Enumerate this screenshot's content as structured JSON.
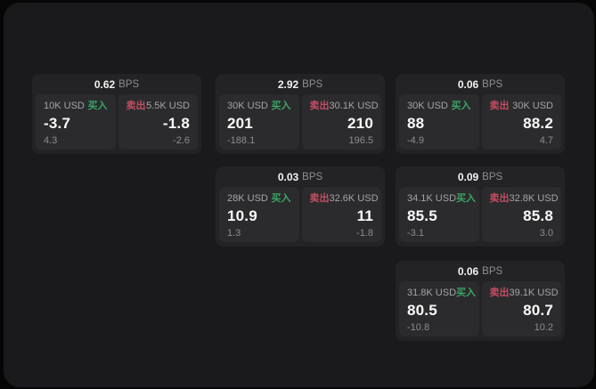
{
  "labels": {
    "bps_suffix": "BPS",
    "buy": "买入",
    "sell": "卖出"
  },
  "colors": {
    "buy_green": "#3aa564",
    "sell_red": "#c44d63"
  },
  "cards": [
    {
      "bps": "0.62",
      "col": 0,
      "row": 0,
      "buy": {
        "size": "10K USD",
        "value": "-3.7",
        "change": "4.3"
      },
      "sell": {
        "size": "5.5K USD",
        "value": "-1.8",
        "change": "-2.6"
      }
    },
    {
      "bps": "2.92",
      "col": 1,
      "row": 0,
      "buy": {
        "size": "30K USD",
        "value": "201",
        "change": "-188.1"
      },
      "sell": {
        "size": "30.1K USD",
        "value": "210",
        "change": "196.5"
      }
    },
    {
      "bps": "0.06",
      "col": 2,
      "row": 0,
      "buy": {
        "size": "30K USD",
        "value": "88",
        "change": "-4.9"
      },
      "sell": {
        "size": "30K USD",
        "value": "88.2",
        "change": "4.7"
      }
    },
    {
      "bps": "0.03",
      "col": 1,
      "row": 1,
      "buy": {
        "size": "28K USD",
        "value": "10.9",
        "change": "1.3"
      },
      "sell": {
        "size": "32.6K USD",
        "value": "11",
        "change": "-1.8"
      }
    },
    {
      "bps": "0.09",
      "col": 2,
      "row": 1,
      "buy": {
        "size": "34.1K USD",
        "value": "85.5",
        "change": "-3.1"
      },
      "sell": {
        "size": "32.8K USD",
        "value": "85.8",
        "change": "3.0"
      }
    },
    {
      "bps": "0.06",
      "col": 2,
      "row": 2,
      "buy": {
        "size": "31.8K USD",
        "value": "80.5",
        "change": "-10.8"
      },
      "sell": {
        "size": "39.1K USD",
        "value": "80.7",
        "change": "10.2"
      }
    }
  ]
}
